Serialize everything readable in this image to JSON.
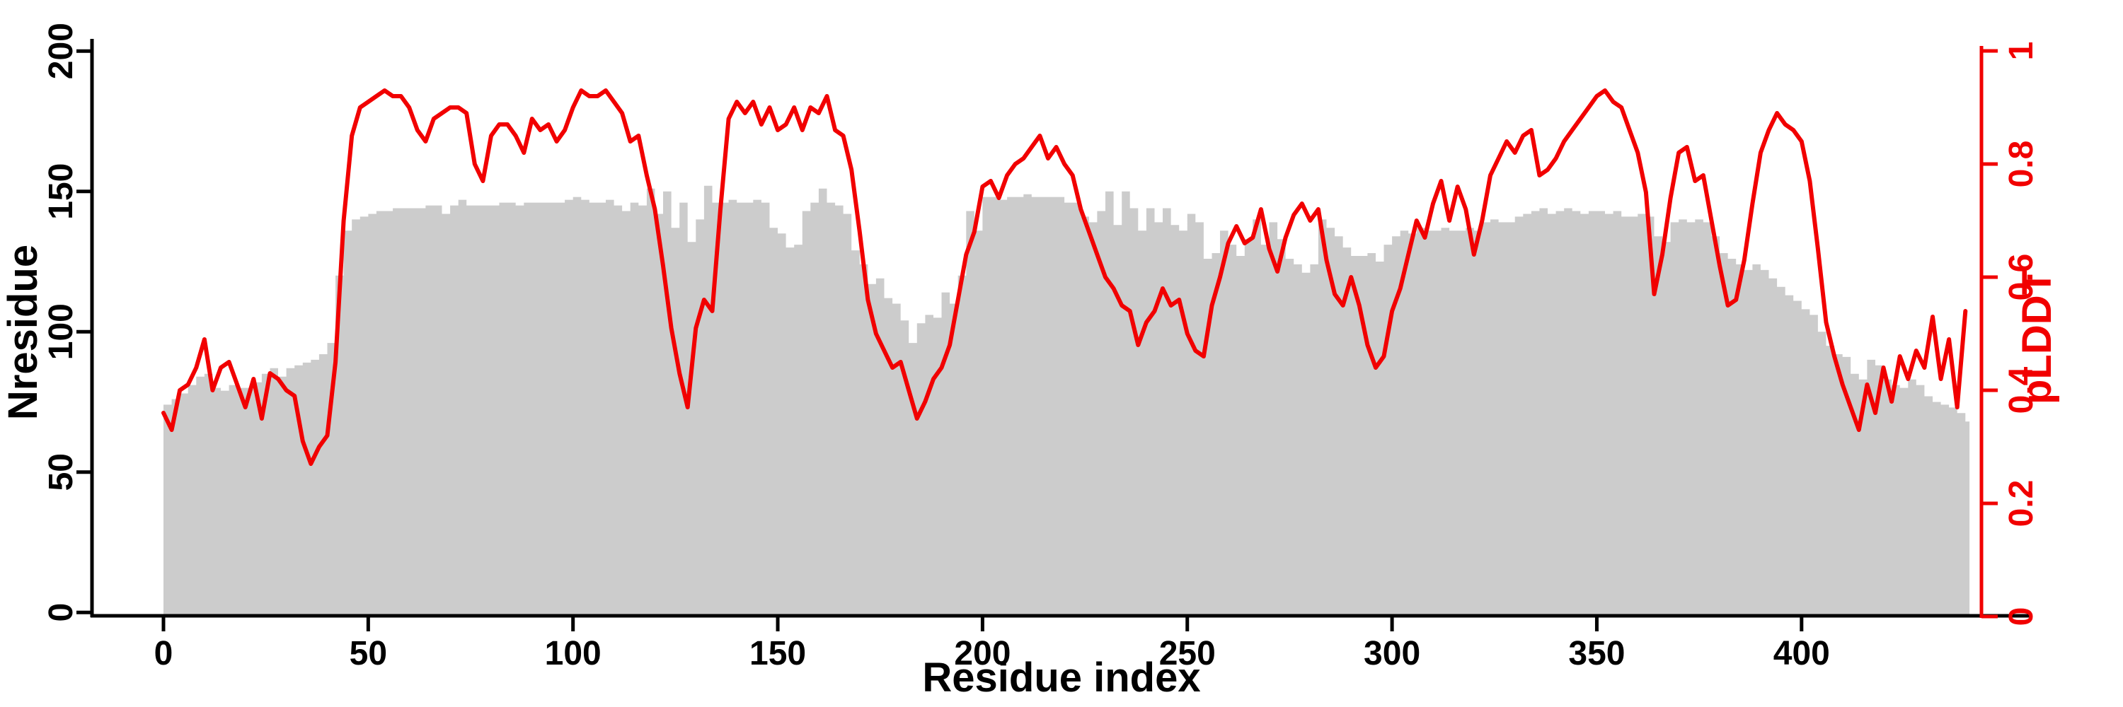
{
  "colors": {
    "background": "#ffffff",
    "axis_black": "#000000",
    "bar_gray": "#cccccc",
    "line_red": "#f10000"
  },
  "chart_data": {
    "type": "bar+line",
    "title": "",
    "xlabel": "Residue index",
    "ylabel_left": "Nresidue",
    "ylabel_right": "pLDDT",
    "x_ticks": [
      0,
      50,
      100,
      150,
      200,
      250,
      300,
      350,
      400
    ],
    "y_ticks_left": [
      0,
      50,
      100,
      150,
      200
    ],
    "y_ticks_right": [
      0,
      0.2,
      0.4,
      0.6,
      0.8,
      1
    ],
    "y_tick_labels_right": [
      "0",
      "0.2",
      "0.4",
      "0.6",
      "0.8",
      "1"
    ],
    "xlim": [
      0,
      441
    ],
    "ylim_left": [
      0,
      200
    ],
    "ylim_right": [
      0,
      1
    ],
    "grid": false,
    "legend": "none",
    "x_start": 0,
    "x_step": 2,
    "bars": {
      "name": "Nresidue",
      "color": "#cccccc",
      "values": [
        74,
        76,
        78,
        81,
        84,
        85,
        80,
        79,
        81,
        80,
        80,
        82,
        85,
        87,
        84,
        87,
        88,
        89,
        90,
        92,
        96,
        120,
        136,
        140,
        141,
        142,
        143,
        143,
        144,
        144,
        144,
        144,
        145,
        145,
        142,
        145,
        147,
        145,
        145,
        145,
        145,
        146,
        146,
        145,
        146,
        146,
        146,
        146,
        146,
        147,
        148,
        147,
        146,
        146,
        147,
        145,
        143,
        146,
        145,
        151,
        142,
        150,
        137,
        146,
        132,
        140,
        152,
        146,
        146,
        147,
        146,
        146,
        147,
        146,
        137,
        135,
        130,
        131,
        143,
        146,
        151,
        146,
        145,
        142,
        129,
        124,
        117,
        119,
        112,
        110,
        104,
        96,
        103,
        106,
        105,
        114,
        110,
        120,
        143,
        136,
        148,
        148,
        147,
        148,
        148,
        149,
        148,
        148,
        148,
        148,
        146,
        146,
        141,
        139,
        143,
        150,
        138,
        150,
        144,
        136,
        144,
        139,
        144,
        138,
        136,
        142,
        139,
        126,
        128,
        136,
        131,
        127,
        133,
        140,
        131,
        139,
        133,
        126,
        124,
        121,
        124,
        140,
        137,
        134,
        130,
        127,
        127,
        128,
        125,
        131,
        134,
        136,
        135,
        137,
        136,
        136,
        137,
        136,
        136,
        137,
        136,
        139,
        140,
        139,
        139,
        141,
        142,
        143,
        144,
        142,
        143,
        144,
        143,
        142,
        143,
        143,
        142,
        143,
        141,
        141,
        142,
        141,
        134,
        132,
        139,
        140,
        139,
        140,
        139,
        134,
        128,
        126,
        124,
        122,
        124,
        122,
        119,
        116,
        113,
        111,
        108,
        106,
        100,
        95,
        92,
        91,
        85,
        83,
        90,
        88,
        83,
        81,
        80,
        83,
        81,
        77,
        75,
        74,
        73,
        71,
        68
      ]
    },
    "line": {
      "name": "pLDDT",
      "color": "#f10000",
      "values": [
        0.36,
        0.33,
        0.4,
        0.41,
        0.44,
        0.49,
        0.4,
        0.44,
        0.45,
        0.41,
        0.37,
        0.42,
        0.35,
        0.43,
        0.42,
        0.4,
        0.39,
        0.31,
        0.27,
        0.3,
        0.32,
        0.45,
        0.7,
        0.85,
        0.9,
        0.91,
        0.92,
        0.93,
        0.92,
        0.92,
        0.9,
        0.86,
        0.84,
        0.88,
        0.89,
        0.9,
        0.9,
        0.89,
        0.8,
        0.77,
        0.85,
        0.87,
        0.87,
        0.85,
        0.82,
        0.88,
        0.86,
        0.87,
        0.84,
        0.86,
        0.9,
        0.93,
        0.92,
        0.92,
        0.93,
        0.91,
        0.89,
        0.84,
        0.85,
        0.78,
        0.72,
        0.62,
        0.51,
        0.43,
        0.37,
        0.51,
        0.56,
        0.54,
        0.72,
        0.88,
        0.91,
        0.89,
        0.91,
        0.87,
        0.9,
        0.86,
        0.87,
        0.9,
        0.86,
        0.9,
        0.89,
        0.92,
        0.86,
        0.85,
        0.79,
        0.68,
        0.56,
        0.5,
        0.47,
        0.44,
        0.45,
        0.4,
        0.35,
        0.38,
        0.42,
        0.44,
        0.48,
        0.56,
        0.64,
        0.68,
        0.76,
        0.77,
        0.74,
        0.78,
        0.8,
        0.81,
        0.83,
        0.85,
        0.81,
        0.83,
        0.8,
        0.78,
        0.72,
        0.68,
        0.64,
        0.6,
        0.58,
        0.55,
        0.54,
        0.48,
        0.52,
        0.54,
        0.58,
        0.55,
        0.56,
        0.5,
        0.47,
        0.46,
        0.55,
        0.6,
        0.66,
        0.69,
        0.66,
        0.67,
        0.72,
        0.65,
        0.61,
        0.67,
        0.71,
        0.73,
        0.7,
        0.72,
        0.63,
        0.57,
        0.55,
        0.6,
        0.55,
        0.48,
        0.44,
        0.46,
        0.54,
        0.58,
        0.64,
        0.7,
        0.67,
        0.73,
        0.77,
        0.7,
        0.76,
        0.72,
        0.64,
        0.7,
        0.78,
        0.81,
        0.84,
        0.82,
        0.85,
        0.86,
        0.78,
        0.79,
        0.81,
        0.84,
        0.86,
        0.88,
        0.9,
        0.92,
        0.93,
        0.91,
        0.9,
        0.86,
        0.82,
        0.75,
        0.57,
        0.64,
        0.74,
        0.82,
        0.83,
        0.77,
        0.78,
        0.7,
        0.62,
        0.55,
        0.56,
        0.63,
        0.73,
        0.82,
        0.86,
        0.89,
        0.87,
        0.86,
        0.84,
        0.77,
        0.65,
        0.52,
        0.46,
        0.41,
        0.37,
        0.33,
        0.41,
        0.36,
        0.44,
        0.38,
        0.46,
        0.42,
        0.47,
        0.44,
        0.53,
        0.42,
        0.49,
        0.37,
        0.54
      ]
    }
  }
}
